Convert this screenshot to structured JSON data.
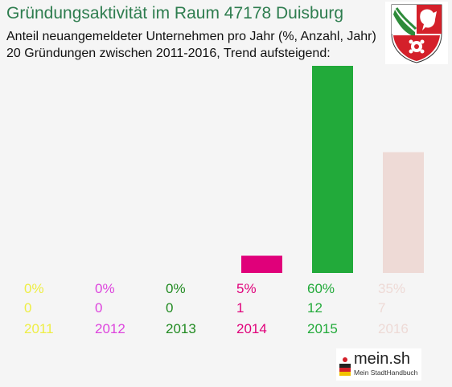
{
  "header": {
    "title": "Gründungsaktivität im Raum 47178 Duisburg",
    "subtitle_line1": "Anteil neuangemeldeter Unternehmen pro Jahr (%, Anzahl, Jahr)",
    "subtitle_line2": "20 Gründungen zwischen 2011-2016, Trend aufsteigend:"
  },
  "crest": {
    "icon": "nrw-coat-of-arms-icon"
  },
  "chart_data": {
    "type": "bar",
    "categories": [
      "2011",
      "2012",
      "2013",
      "2014",
      "2015",
      "2016"
    ],
    "values": [
      0,
      0,
      0,
      1,
      12,
      7
    ],
    "percent_labels": [
      "0%",
      "0%",
      "0%",
      "5%",
      "60%",
      "35%"
    ],
    "count_labels": [
      "0",
      "0",
      "0",
      "1",
      "12",
      "7"
    ],
    "colors": [
      "#eeee44",
      "#dd44dd",
      "#228b22",
      "#e0007a",
      "#22aa3a",
      "#eedad6"
    ],
    "bar_color": [
      "#e0007a",
      "#22aa3a",
      "#eedad6"
    ],
    "ylim": [
      0,
      12
    ]
  },
  "footer": {
    "brand": "mein.sh",
    "tagline": "Mein StadtHandbuch",
    "icon": "germany-flag-person-icon"
  }
}
